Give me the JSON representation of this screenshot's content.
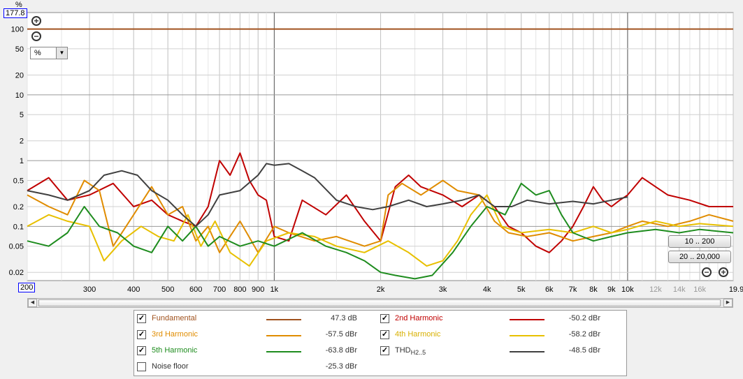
{
  "chart_data": {
    "type": "line",
    "xscale": "log",
    "yscale": "log",
    "xlim": [
      200,
      19900
    ],
    "ylim": [
      0.015,
      177.8
    ],
    "ylabel": "%",
    "ymax_label": "177.8",
    "xmin_label": "200",
    "y_ticks": [
      100,
      50,
      20,
      10,
      5,
      2,
      1,
      0.5,
      0.2,
      0.1,
      0.05,
      0.02
    ],
    "y_tick_labels": [
      "100",
      "50",
      "20",
      "10",
      "5",
      "2",
      "1",
      "0.5",
      "0.2",
      "0.1",
      "0.05",
      "0.02"
    ],
    "x_ticks": [
      300,
      400,
      500,
      600,
      700,
      800,
      900,
      1000,
      2000,
      3000,
      4000,
      5000,
      6000,
      7000,
      8000,
      9000,
      10000,
      12000,
      14000,
      16000,
      19900
    ],
    "x_tick_labels": [
      "300",
      "400",
      "500",
      "600",
      "700",
      "800",
      "900",
      "1k",
      "2k",
      "3k",
      "4k",
      "5k",
      "6k",
      "7k",
      "8k",
      "9k",
      "10k",
      "12k",
      "14k",
      "16k",
      "19.9kHz"
    ],
    "grey_tick_labels": [
      "12k",
      "14k",
      "16k"
    ],
    "grid": true,
    "series": [
      {
        "name": "Fundamental",
        "color": "#a0521e",
        "points": [
          [
            200,
            100
          ],
          [
            19900,
            100
          ]
        ]
      },
      {
        "name": "2nd Harmonic",
        "color": "#c00000",
        "points": [
          [
            200,
            0.35
          ],
          [
            230,
            0.55
          ],
          [
            260,
            0.25
          ],
          [
            300,
            0.3
          ],
          [
            350,
            0.45
          ],
          [
            400,
            0.2
          ],
          [
            450,
            0.25
          ],
          [
            500,
            0.15
          ],
          [
            550,
            0.12
          ],
          [
            600,
            0.1
          ],
          [
            650,
            0.2
          ],
          [
            700,
            1.0
          ],
          [
            750,
            0.6
          ],
          [
            800,
            1.3
          ],
          [
            850,
            0.5
          ],
          [
            900,
            0.3
          ],
          [
            950,
            0.25
          ],
          [
            1000,
            0.07
          ],
          [
            1100,
            0.06
          ],
          [
            1200,
            0.25
          ],
          [
            1400,
            0.15
          ],
          [
            1600,
            0.3
          ],
          [
            1800,
            0.12
          ],
          [
            2000,
            0.06
          ],
          [
            2200,
            0.4
          ],
          [
            2400,
            0.6
          ],
          [
            2600,
            0.4
          ],
          [
            3000,
            0.3
          ],
          [
            3400,
            0.2
          ],
          [
            3800,
            0.3
          ],
          [
            4200,
            0.2
          ],
          [
            4600,
            0.1
          ],
          [
            5000,
            0.08
          ],
          [
            5500,
            0.05
          ],
          [
            6000,
            0.04
          ],
          [
            6500,
            0.06
          ],
          [
            7000,
            0.1
          ],
          [
            7500,
            0.2
          ],
          [
            8000,
            0.4
          ],
          [
            8500,
            0.25
          ],
          [
            9000,
            0.2
          ],
          [
            9500,
            0.25
          ],
          [
            10000,
            0.3
          ],
          [
            11000,
            0.55
          ],
          [
            12000,
            0.4
          ],
          [
            13000,
            0.3
          ],
          [
            15000,
            0.25
          ],
          [
            17000,
            0.2
          ],
          [
            19900,
            0.2
          ]
        ]
      },
      {
        "name": "3rd Harmonic",
        "color": "#e08c00",
        "points": [
          [
            200,
            0.3
          ],
          [
            230,
            0.2
          ],
          [
            260,
            0.15
          ],
          [
            290,
            0.5
          ],
          [
            320,
            0.35
          ],
          [
            350,
            0.05
          ],
          [
            400,
            0.15
          ],
          [
            450,
            0.4
          ],
          [
            500,
            0.15
          ],
          [
            550,
            0.2
          ],
          [
            600,
            0.06
          ],
          [
            650,
            0.1
          ],
          [
            700,
            0.04
          ],
          [
            800,
            0.12
          ],
          [
            900,
            0.04
          ],
          [
            1000,
            0.1
          ],
          [
            1100,
            0.08
          ],
          [
            1300,
            0.06
          ],
          [
            1500,
            0.07
          ],
          [
            1800,
            0.05
          ],
          [
            2000,
            0.06
          ],
          [
            2100,
            0.3
          ],
          [
            2300,
            0.45
          ],
          [
            2600,
            0.3
          ],
          [
            3000,
            0.5
          ],
          [
            3300,
            0.35
          ],
          [
            3800,
            0.3
          ],
          [
            4200,
            0.12
          ],
          [
            4600,
            0.08
          ],
          [
            5200,
            0.07
          ],
          [
            6000,
            0.08
          ],
          [
            7000,
            0.06
          ],
          [
            8000,
            0.07
          ],
          [
            9000,
            0.08
          ],
          [
            10000,
            0.1
          ],
          [
            11000,
            0.12
          ],
          [
            13000,
            0.1
          ],
          [
            15000,
            0.12
          ],
          [
            17000,
            0.15
          ],
          [
            19900,
            0.12
          ]
        ]
      },
      {
        "name": "4th Harmonic",
        "color": "#e8c000",
        "points": [
          [
            200,
            0.1
          ],
          [
            230,
            0.15
          ],
          [
            260,
            0.12
          ],
          [
            300,
            0.1
          ],
          [
            330,
            0.03
          ],
          [
            370,
            0.06
          ],
          [
            420,
            0.1
          ],
          [
            470,
            0.07
          ],
          [
            520,
            0.06
          ],
          [
            570,
            0.15
          ],
          [
            620,
            0.05
          ],
          [
            680,
            0.12
          ],
          [
            750,
            0.04
          ],
          [
            850,
            0.025
          ],
          [
            950,
            0.06
          ],
          [
            1100,
            0.08
          ],
          [
            1300,
            0.07
          ],
          [
            1500,
            0.05
          ],
          [
            1800,
            0.04
          ],
          [
            2100,
            0.06
          ],
          [
            2400,
            0.04
          ],
          [
            2700,
            0.025
          ],
          [
            3000,
            0.03
          ],
          [
            3300,
            0.06
          ],
          [
            3600,
            0.15
          ],
          [
            4000,
            0.3
          ],
          [
            4400,
            0.1
          ],
          [
            5000,
            0.08
          ],
          [
            6000,
            0.09
          ],
          [
            7000,
            0.08
          ],
          [
            8000,
            0.1
          ],
          [
            9000,
            0.08
          ],
          [
            10000,
            0.09
          ],
          [
            12000,
            0.12
          ],
          [
            14000,
            0.1
          ],
          [
            16000,
            0.11
          ],
          [
            19900,
            0.1
          ]
        ]
      },
      {
        "name": "5th Harmonic",
        "color": "#1e8c1e",
        "points": [
          [
            200,
            0.06
          ],
          [
            230,
            0.05
          ],
          [
            260,
            0.08
          ],
          [
            290,
            0.2
          ],
          [
            320,
            0.1
          ],
          [
            360,
            0.08
          ],
          [
            400,
            0.05
          ],
          [
            450,
            0.04
          ],
          [
            500,
            0.1
          ],
          [
            550,
            0.06
          ],
          [
            600,
            0.1
          ],
          [
            650,
            0.05
          ],
          [
            700,
            0.07
          ],
          [
            800,
            0.05
          ],
          [
            900,
            0.06
          ],
          [
            1000,
            0.05
          ],
          [
            1200,
            0.08
          ],
          [
            1400,
            0.05
          ],
          [
            1600,
            0.04
          ],
          [
            1800,
            0.03
          ],
          [
            2000,
            0.02
          ],
          [
            2200,
            0.018
          ],
          [
            2500,
            0.016
          ],
          [
            2800,
            0.018
          ],
          [
            3200,
            0.04
          ],
          [
            3600,
            0.1
          ],
          [
            4000,
            0.2
          ],
          [
            4500,
            0.15
          ],
          [
            5000,
            0.45
          ],
          [
            5500,
            0.3
          ],
          [
            6000,
            0.35
          ],
          [
            6500,
            0.15
          ],
          [
            7000,
            0.08
          ],
          [
            8000,
            0.06
          ],
          [
            9000,
            0.07
          ],
          [
            10000,
            0.08
          ],
          [
            12000,
            0.09
          ],
          [
            14000,
            0.08
          ],
          [
            16000,
            0.09
          ],
          [
            19900,
            0.08
          ]
        ]
      },
      {
        "name": "THD",
        "name_sub": "H2..5",
        "color": "#404040",
        "points": [
          [
            200,
            0.35
          ],
          [
            230,
            0.3
          ],
          [
            260,
            0.25
          ],
          [
            300,
            0.35
          ],
          [
            330,
            0.6
          ],
          [
            370,
            0.7
          ],
          [
            410,
            0.6
          ],
          [
            450,
            0.35
          ],
          [
            500,
            0.25
          ],
          [
            550,
            0.15
          ],
          [
            600,
            0.1
          ],
          [
            650,
            0.15
          ],
          [
            700,
            0.3
          ],
          [
            800,
            0.35
          ],
          [
            900,
            0.6
          ],
          [
            950,
            0.9
          ],
          [
            1000,
            0.85
          ],
          [
            1100,
            0.9
          ],
          [
            1200,
            0.7
          ],
          [
            1300,
            0.55
          ],
          [
            1500,
            0.25
          ],
          [
            1700,
            0.2
          ],
          [
            1900,
            0.18
          ],
          [
            2100,
            0.2
          ],
          [
            2400,
            0.25
          ],
          [
            2700,
            0.2
          ],
          [
            3000,
            0.22
          ],
          [
            3400,
            0.25
          ],
          [
            3800,
            0.3
          ],
          [
            4200,
            0.2
          ],
          [
            4700,
            0.2
          ],
          [
            5200,
            0.25
          ],
          [
            6000,
            0.22
          ],
          [
            7000,
            0.24
          ],
          [
            8000,
            0.22
          ],
          [
            9000,
            0.25
          ],
          [
            10000,
            0.28
          ]
        ]
      }
    ]
  },
  "legend": {
    "items": [
      {
        "label": "Fundamental",
        "value": "47.3 dB",
        "color": "#a0521e",
        "checked": true
      },
      {
        "label": "2nd Harmonic",
        "value": "-50.2 dBr",
        "color": "#c00000",
        "checked": true
      },
      {
        "label": "3rd Harmonic",
        "value": "-57.5 dBr",
        "color": "#e08c00",
        "checked": true
      },
      {
        "label": "4th Harmonic",
        "value": "-58.2 dBr",
        "color": "#e8c000",
        "checked": true
      },
      {
        "label": "5th Harmonic",
        "value": "-63.8 dBr",
        "color": "#1e8c1e",
        "checked": true
      },
      {
        "label": "THD",
        "label_sub": "H2..5",
        "value": "-48.5 dBr",
        "color": "#404040",
        "checked": true
      },
      {
        "label": "Noise floor",
        "value": "-25.3 dBr",
        "color": "#808080",
        "checked": false
      }
    ],
    "check_mark": "✓"
  },
  "controls": {
    "unit_value": "%",
    "range_button_1": "10 .. 200",
    "range_button_2": "20 .. 20,000",
    "zoom_in_glyph": "+",
    "zoom_out_glyph": "−",
    "dropdown_glyph": "▼",
    "scroll_left_glyph": "◀",
    "scroll_right_glyph": "▶"
  }
}
